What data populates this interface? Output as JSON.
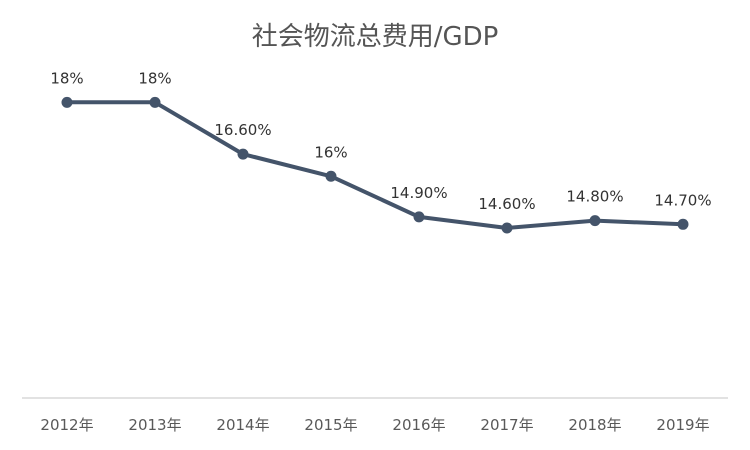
{
  "chart_data": {
    "type": "line",
    "title": "社会物流总费用/GDP",
    "xlabel": "",
    "ylabel": "",
    "categories": [
      "2012年",
      "2013年",
      "2014年",
      "2015年",
      "2016年",
      "2017年",
      "2018年",
      "2019年"
    ],
    "series": [
      {
        "name": "",
        "values": [
          18,
          18,
          16.6,
          16,
          14.9,
          14.6,
          14.8,
          14.7
        ],
        "labels": [
          "18%",
          "18%",
          "16.60%",
          "16%",
          "14.90%",
          "14.60%",
          "14.80%",
          "14.70%"
        ]
      }
    ],
    "ylim": [
      10,
      19.2
    ],
    "grid": false,
    "legend": "none",
    "line_color": "#44546A",
    "axis_color": "#D9D9D9"
  }
}
